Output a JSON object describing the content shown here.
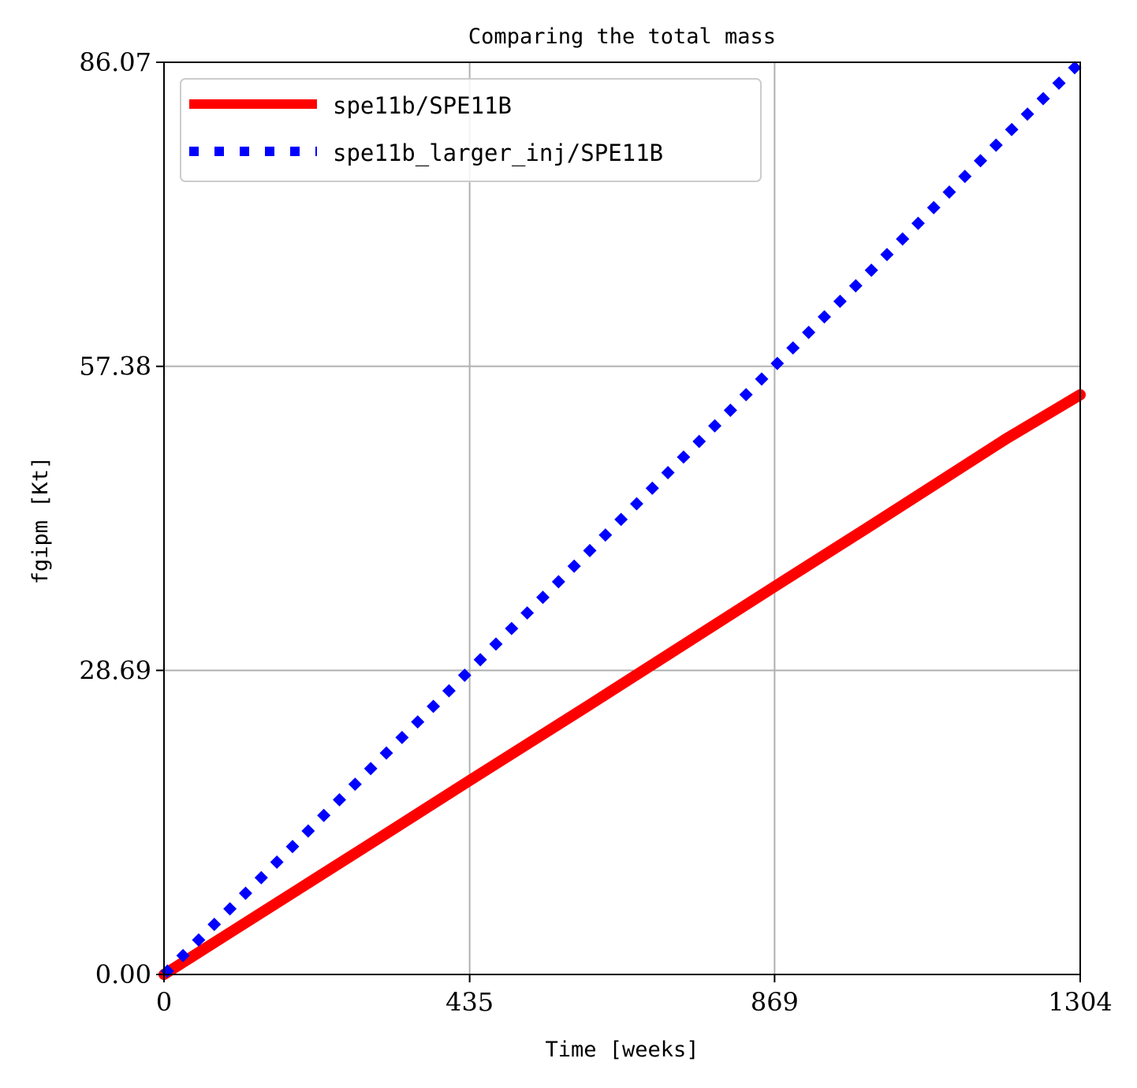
{
  "chart_data": {
    "type": "line",
    "title": "Comparing the total mass",
    "xlabel": "Time [weeks]",
    "ylabel": "fgipm [Kt]",
    "xlim": [
      0,
      1304
    ],
    "ylim": [
      0,
      86.07
    ],
    "xticks": [
      0,
      435,
      869,
      1304
    ],
    "xtick_labels": [
      "0",
      "435",
      "869",
      "1304"
    ],
    "yticks": [
      0,
      28.69,
      57.38,
      86.07
    ],
    "ytick_labels": [
      "0.00",
      "28.69",
      "57.38",
      "86.07"
    ],
    "grid": true,
    "legend_position": "top-left",
    "series": [
      {
        "name": "spe11b/SPE11B",
        "color": "#ff0000",
        "style": "solid",
        "x": [
          0,
          100,
          200,
          300,
          435,
          600,
          869,
          1000,
          1200,
          1304
        ],
        "y": [
          0,
          4.2,
          8.4,
          12.6,
          18.3,
          25.2,
          36.6,
          42.1,
          50.6,
          54.7
        ]
      },
      {
        "name": "spe11b_larger_inj/SPE11B",
        "color": "#0000ff",
        "style": "dotted",
        "x": [
          0,
          100,
          200,
          300,
          435,
          600,
          869,
          1000,
          1200,
          1304
        ],
        "y": [
          0,
          6.6,
          13.2,
          19.8,
          28.7,
          39.6,
          57.4,
          66.0,
          79.3,
          86.07
        ]
      }
    ]
  }
}
